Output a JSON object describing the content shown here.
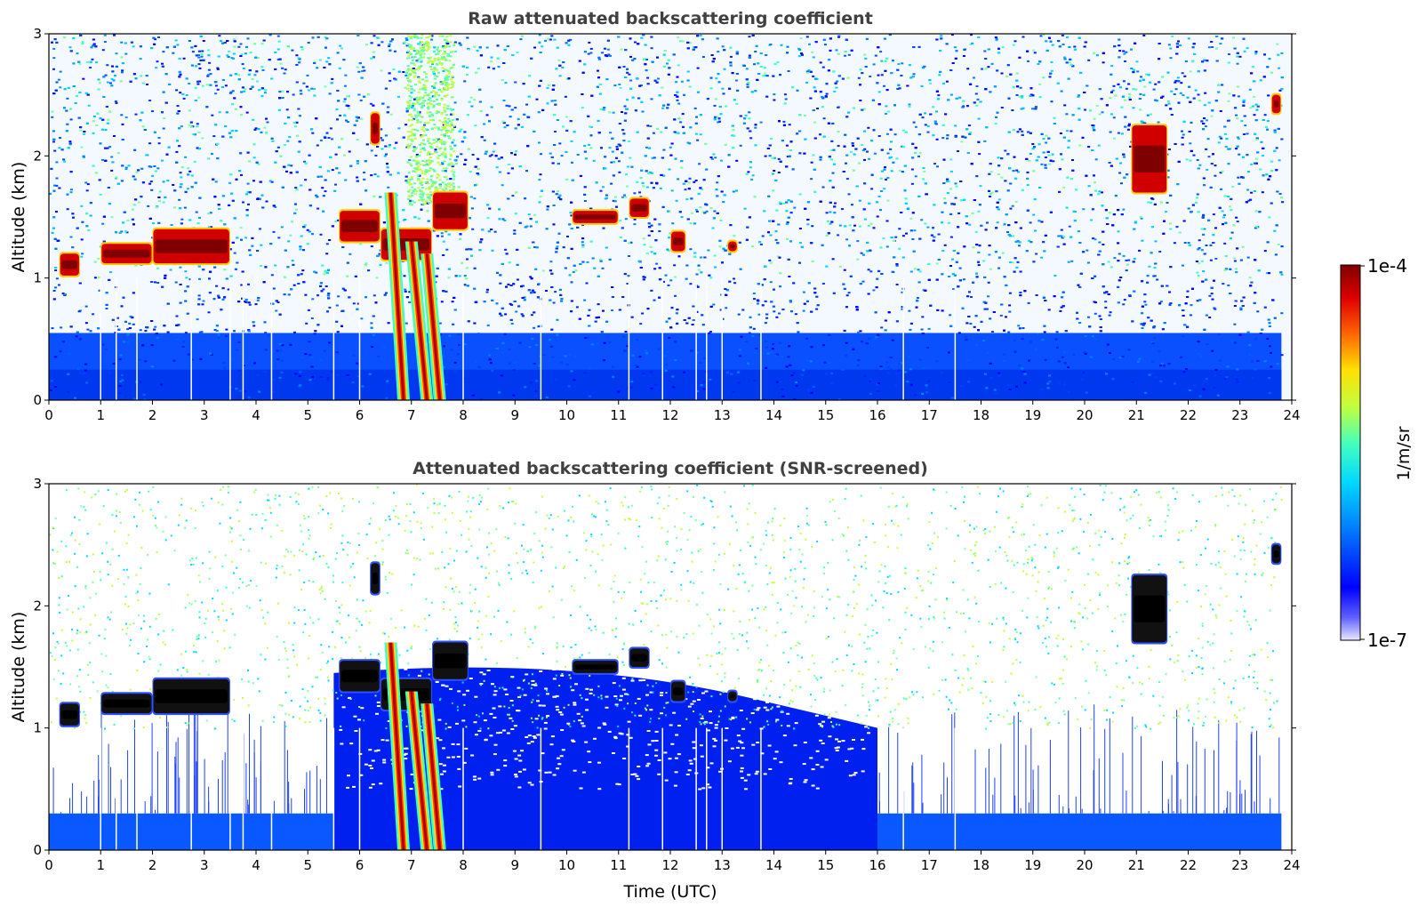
{
  "colormap": [
    "#ffffff",
    "#0000ff",
    "#0080ff",
    "#00d0ff",
    "#40ffc0",
    "#c0ff40",
    "#ffe000",
    "#ff6000",
    "#d00000",
    "#7f0000"
  ],
  "colorbar": {
    "top_label": "1e-4",
    "bottom_label": "1e-7",
    "unit_label": "1/m/sr"
  },
  "chart_data": [
    {
      "type": "heatmap",
      "title": "Raw attenuated backscattering coefficient",
      "xlabel": "",
      "ylabel": "Altitude (km)",
      "xlim": [
        0,
        24
      ],
      "ylim": [
        0,
        3
      ],
      "xticks": [
        0,
        1,
        2,
        3,
        4,
        5,
        6,
        7,
        8,
        9,
        10,
        11,
        12,
        13,
        14,
        15,
        16,
        17,
        18,
        19,
        20,
        21,
        22,
        23,
        24
      ],
      "yticks": [
        0,
        1,
        2,
        3
      ],
      "colorbar_range": [
        "1e-7",
        "1e-4"
      ],
      "colorbar_unit": "1/m/sr",
      "cloud_features_km": [
        {
          "t0": 0.2,
          "t1": 0.6,
          "z0": 1.02,
          "z1": 1.2
        },
        {
          "t0": 1.0,
          "t1": 2.0,
          "z0": 1.12,
          "z1": 1.28
        },
        {
          "t0": 2.0,
          "t1": 3.5,
          "z0": 1.12,
          "z1": 1.4
        },
        {
          "t0": 5.6,
          "t1": 6.4,
          "z0": 1.3,
          "z1": 1.55
        },
        {
          "t0": 6.4,
          "t1": 7.4,
          "z0": 1.15,
          "z1": 1.4
        },
        {
          "t0": 7.4,
          "t1": 8.1,
          "z0": 1.4,
          "z1": 1.7
        },
        {
          "t0": 6.2,
          "t1": 6.4,
          "z0": 2.1,
          "z1": 2.35
        },
        {
          "t0": 10.1,
          "t1": 11.0,
          "z0": 1.45,
          "z1": 1.55
        },
        {
          "t0": 11.2,
          "t1": 11.6,
          "z0": 1.5,
          "z1": 1.65
        },
        {
          "t0": 12.0,
          "t1": 12.3,
          "z0": 1.22,
          "z1": 1.38
        },
        {
          "t0": 13.1,
          "t1": 13.3,
          "z0": 1.22,
          "z1": 1.3
        },
        {
          "t0": 20.9,
          "t1": 21.6,
          "z0": 1.7,
          "z1": 2.25
        },
        {
          "t0": 23.6,
          "t1": 23.8,
          "z0": 2.35,
          "z1": 2.5
        }
      ],
      "precipitation_fall_streaks": [
        {
          "t_top": 6.6,
          "z_top": 1.7,
          "t_bottom": 6.85
        },
        {
          "t_top": 7.0,
          "z_top": 1.3,
          "t_bottom": 7.3
        },
        {
          "t_top": 7.3,
          "z_top": 1.2,
          "t_bottom": 7.55
        }
      ]
    },
    {
      "type": "heatmap",
      "title": "Attenuated backscattering coefficient (SNR-screened)",
      "xlabel": "Time (UTC)",
      "ylabel": "Altitude (km)",
      "xlim": [
        0,
        24
      ],
      "ylim": [
        0,
        3
      ],
      "xticks": [
        0,
        1,
        2,
        3,
        4,
        5,
        6,
        7,
        8,
        9,
        10,
        11,
        12,
        13,
        14,
        15,
        16,
        17,
        18,
        19,
        20,
        21,
        22,
        23,
        24
      ],
      "yticks": [
        0,
        1,
        2,
        3
      ],
      "colorbar_range": [
        "1e-7",
        "1e-4"
      ],
      "colorbar_unit": "1/m/sr",
      "screened_boundary_layer_top_km": 0.3
    }
  ],
  "axes": [
    {
      "title": "Raw attenuated backscattering coefficient",
      "xlabel": "",
      "ylabel": "Altitude (km)",
      "xticks": [
        "0",
        "1",
        "2",
        "3",
        "4",
        "5",
        "6",
        "7",
        "8",
        "9",
        "10",
        "11",
        "12",
        "13",
        "14",
        "15",
        "16",
        "17",
        "18",
        "19",
        "20",
        "21",
        "22",
        "23",
        "24"
      ],
      "yticks": [
        "0",
        "1",
        "2",
        "3"
      ]
    },
    {
      "title": "Attenuated backscattering coefficient (SNR-screened)",
      "xlabel": "Time (UTC)",
      "ylabel": "Altitude (km)",
      "xticks": [
        "0",
        "1",
        "2",
        "3",
        "4",
        "5",
        "6",
        "7",
        "8",
        "9",
        "10",
        "11",
        "12",
        "13",
        "14",
        "15",
        "16",
        "17",
        "18",
        "19",
        "20",
        "21",
        "22",
        "23",
        "24"
      ],
      "yticks": [
        "0",
        "1",
        "2",
        "3"
      ]
    }
  ]
}
